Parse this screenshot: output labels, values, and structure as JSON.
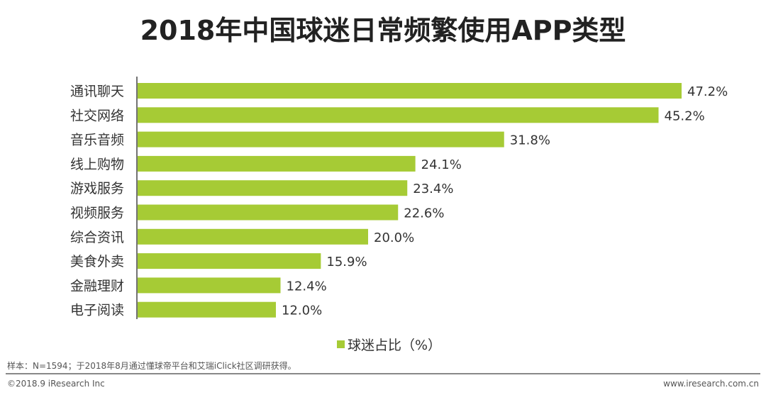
{
  "chart_data": {
    "type": "bar",
    "orientation": "horizontal",
    "title": "2018年中国球迷日常频繁使用APP类型",
    "categories": [
      "通讯聊天",
      "社交网络",
      "音乐音频",
      "线上购物",
      "游戏服务",
      "视频服务",
      "综合资讯",
      "美食外卖",
      "金融理财",
      "电子阅读"
    ],
    "series": [
      {
        "name": "球迷占比（%）",
        "values": [
          47.2,
          45.2,
          31.8,
          24.1,
          23.4,
          22.6,
          20.0,
          15.9,
          12.4,
          12.0
        ]
      }
    ],
    "data_labels": [
      "47.2%",
      "45.2%",
      "31.8%",
      "24.1%",
      "23.4%",
      "22.6%",
      "20.0%",
      "15.9%",
      "12.4%",
      "12.0%"
    ],
    "xlim": [
      0,
      50
    ],
    "grid": false,
    "legend_position": "bottom",
    "bar_color": "#a6cb35"
  },
  "footer": {
    "note": "样本：N=1594；于2018年8月通过懂球帝平台和艾瑞iClick社区调研获得。",
    "copyright": "©2018.9 iResearch Inc",
    "website": "www.iresearch.com.cn"
  }
}
